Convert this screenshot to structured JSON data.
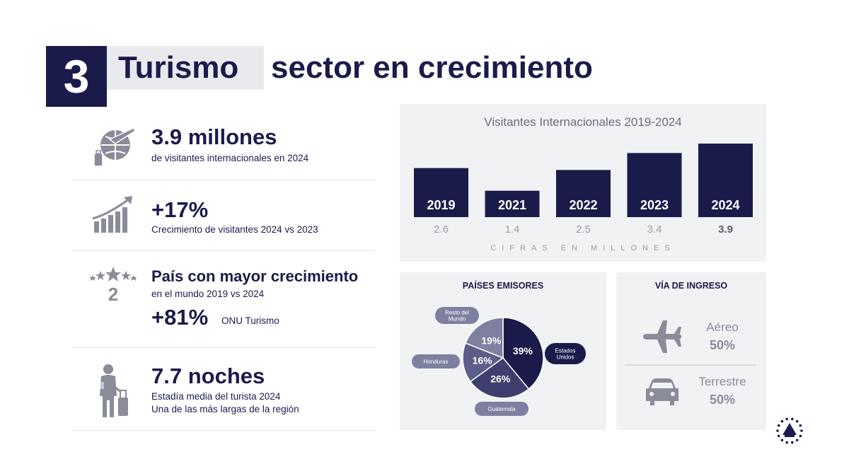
{
  "header": {
    "number": "3",
    "title_highlight": "Turismo",
    "title_rest": "sector en crecimiento"
  },
  "stats": [
    {
      "headline": "3.9 millones",
      "line1": "de visitantes internacionales en 2024",
      "icon": "globe-plane-suitcase-icon"
    },
    {
      "headline": "+17%",
      "line1": "Crecimiento de visitantes 2024 vs 2023",
      "icon": "growth-chart-icon"
    },
    {
      "headline": "País con mayor crecimiento",
      "line1": "en el mundo 2019 vs 2024",
      "highlight": "+81%",
      "source": "ONU Turismo",
      "icon": "stars-rank-icon",
      "rank": "2"
    },
    {
      "headline": "7.7 noches",
      "line1": "Estadía media del turista 2024",
      "line2": "Una de las más largas de la región",
      "icon": "traveler-suitcase-icon"
    }
  ],
  "via_ingreso": {
    "title": "VÍA DE INGRESO",
    "items": [
      {
        "label": "Aéreo",
        "value": "50%",
        "icon": "airplane-icon"
      },
      {
        "label": "Terrestre",
        "value": "50%",
        "icon": "car-icon"
      }
    ]
  },
  "colors": {
    "navy": "#1b1b4b",
    "panel": "#f1f2f4",
    "gray": "#8a8c9a",
    "highlight": "#e9eaee"
  },
  "chart_data": [
    {
      "type": "bar",
      "title": "Visitantes Internacionales  2019-2024",
      "categories": [
        "2019",
        "2021",
        "2022",
        "2023",
        "2024"
      ],
      "values": [
        2.6,
        1.4,
        2.5,
        3.4,
        3.9
      ],
      "value_labels": [
        "2.6",
        "1.4",
        "2.5",
        "3.4",
        "3.9"
      ],
      "footnote": "CIFRAS EN MILLONES",
      "highlight_category": "2024",
      "color": "#1b1b4b"
    },
    {
      "type": "pie",
      "title": "PAÍSES EMISORES",
      "slices": [
        {
          "label": "Estados Unidos",
          "value": 39,
          "display": "39%",
          "color": "#1b1b4b"
        },
        {
          "label": "Guatemala",
          "value": 26,
          "display": "26%",
          "color": "#3e3f6e"
        },
        {
          "label": "Honduras",
          "value": 16,
          "display": "16%",
          "color": "#5c5e88"
        },
        {
          "label": "Resto del Mundo",
          "value": 19,
          "display": "19%",
          "color": "#7e80a0"
        }
      ]
    }
  ]
}
